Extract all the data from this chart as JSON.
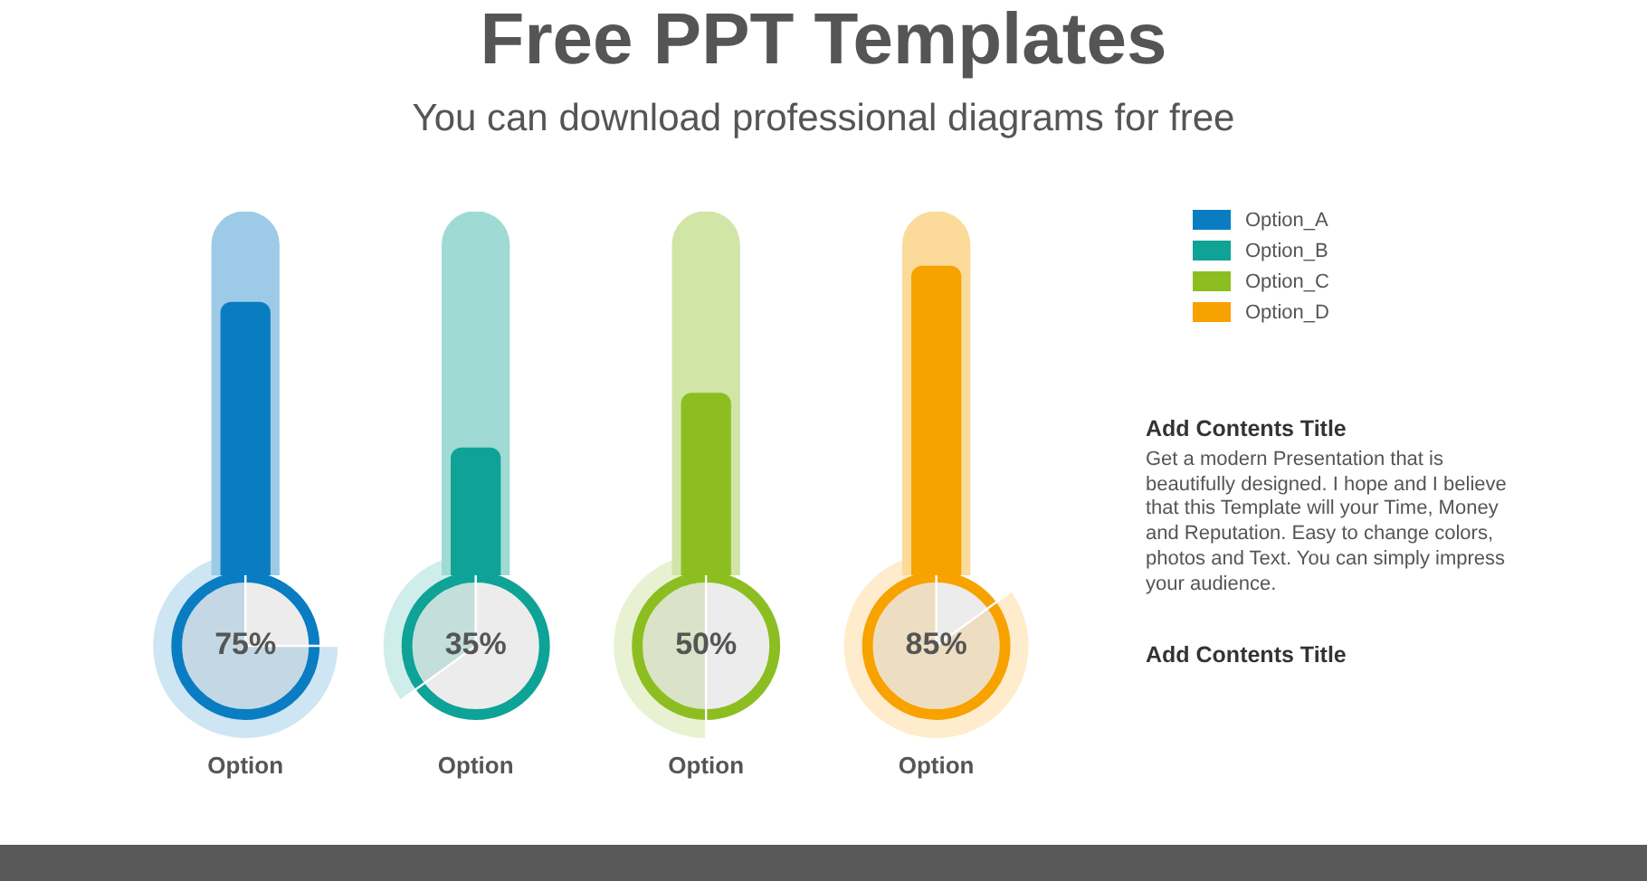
{
  "chart_data": {
    "type": "bar",
    "title": "Free PPT Templates",
    "subtitle": "You can download professional diagrams for free",
    "categories": [
      "Option",
      "Option",
      "Option",
      "Option"
    ],
    "series": [
      {
        "name": "Option_A",
        "color": "#0a7dc2",
        "values": [
          75,
          null,
          null,
          null
        ],
        "value_labels": [
          "75%",
          null,
          null,
          null
        ]
      },
      {
        "name": "Option_B",
        "color": "#0ea396",
        "values": [
          null,
          35,
          null,
          null
        ],
        "value_labels": [
          null,
          "35%",
          null,
          null
        ]
      },
      {
        "name": "Option_C",
        "color": "#8cbe22",
        "values": [
          null,
          null,
          50,
          null
        ],
        "value_labels": [
          null,
          null,
          "50%",
          null
        ]
      },
      {
        "name": "Option_D",
        "color": "#f8a200",
        "values": [
          null,
          null,
          null,
          85
        ],
        "value_labels": [
          null,
          null,
          null,
          "85%"
        ]
      },
      {
        "colors": [
          "#9dcbe7",
          "#9fdad5",
          "#d1e5a7",
          "#fcda99"
        ],
        "values": [
          100,
          100,
          100,
          100
        ]
      }
    ],
    "tick_labels": "x",
    "legend": "top right",
    "annotations": [
      "Add Contents Title",
      "Get a modern Presentation that is beautifully designed. I hope and I believe that this Template will your Time, Money and Reputation. Easy to change colors, photos and Text. You can simply impress your audience.",
      "Add Contents Title"
    ]
  }
}
